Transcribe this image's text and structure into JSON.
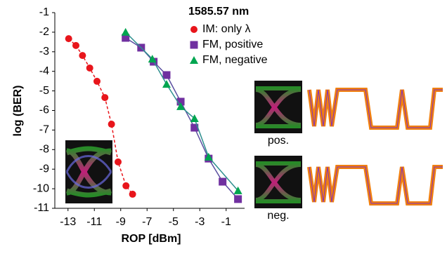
{
  "chart_data": {
    "type": "scatter",
    "legend_title": "1585.57 nm",
    "x_label": "ROP [dBm]",
    "y_label": "log (BER)",
    "xlim": [
      -14,
      0.4
    ],
    "ylim": [
      -11,
      -1
    ],
    "xticks": [
      -13,
      -11,
      -9,
      -7,
      -5,
      -3,
      -1
    ],
    "yticks": [
      -1,
      -2,
      -3,
      -4,
      -5,
      -6,
      -7,
      -8,
      -9,
      -10,
      -11
    ],
    "grid": false,
    "inset_labels": [
      "pos.",
      "neg."
    ],
    "series": [
      {
        "name": "IM: only λ",
        "color": "#e8151b",
        "marker": "circle",
        "line_color": "#e8151b",
        "line_style": "dashed",
        "x": [
          -12.95,
          -12.4,
          -11.9,
          -11.35,
          -10.8,
          -10.2,
          -9.7,
          -9.2,
          -8.6,
          -8.1
        ],
        "values": [
          -2.33,
          -2.68,
          -3.19,
          -3.83,
          -4.51,
          -5.34,
          -6.7,
          -8.63,
          -9.85,
          -10.28
        ]
      },
      {
        "name": "FM, positive",
        "color": "#7030a0",
        "marker": "square",
        "line_color": "#5a4fa0",
        "line_style": "solid",
        "x": [
          -8.63,
          -7.45,
          -6.5,
          -5.52,
          -4.45,
          -3.4,
          -2.33,
          -1.27,
          -0.1
        ],
        "values": [
          -2.29,
          -2.79,
          -3.51,
          -4.19,
          -5.55,
          -6.88,
          -8.46,
          -9.64,
          -10.53
        ]
      },
      {
        "name": "FM, negative",
        "color": "#00a550",
        "marker": "triangle",
        "line_color": "#2e8f8f",
        "line_style": "solid",
        "x": [
          -8.63,
          -6.6,
          -5.52,
          -4.45,
          -3.4,
          -2.33,
          -0.1
        ],
        "values": [
          -2.0,
          -3.37,
          -4.66,
          -5.8,
          -6.41,
          -8.38,
          -10.1
        ]
      }
    ]
  }
}
